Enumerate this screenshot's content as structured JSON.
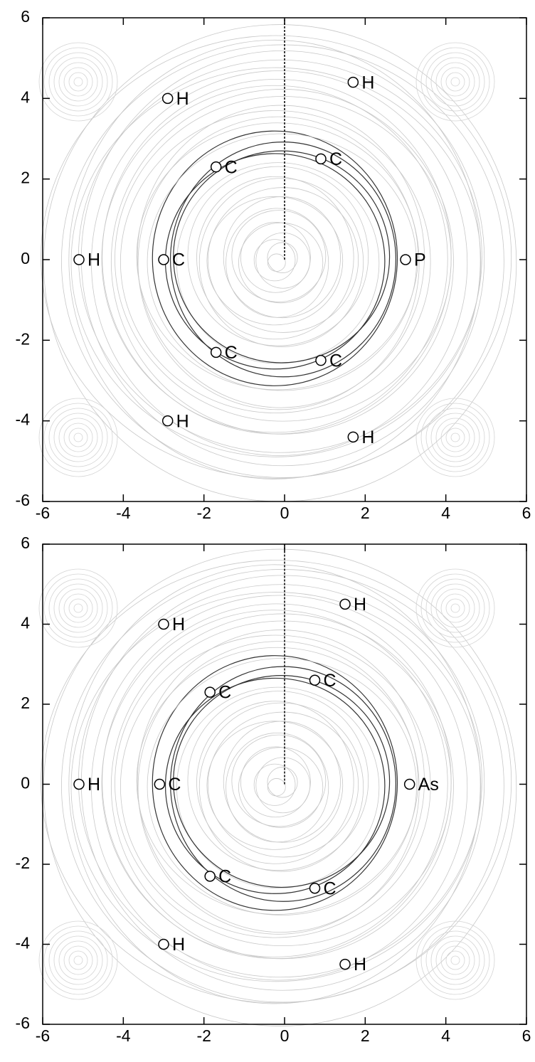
{
  "chart_data": [
    {
      "type": "scatter",
      "x": [
        -2.9,
        1.7,
        -1.7,
        0.9,
        -5.1,
        -3.0,
        3.0,
        -1.7,
        0.9,
        -2.9,
        1.7
      ],
      "y": [
        4.0,
        4.4,
        2.3,
        2.5,
        0,
        0,
        0,
        -2.3,
        -2.5,
        -4.0,
        -4.4
      ],
      "labels": [
        "H",
        "H",
        "C",
        "C",
        "H",
        "C",
        "P",
        "C",
        "C",
        "H",
        "H"
      ],
      "xlim": [
        -6,
        6
      ],
      "ylim": [
        -6,
        6
      ],
      "xticks": [
        -6,
        -4,
        -2,
        0,
        2,
        4,
        6
      ],
      "yticks": [
        -6,
        -4,
        -2,
        0,
        2,
        4,
        6
      ]
    },
    {
      "type": "scatter",
      "x": [
        -3.0,
        1.5,
        -1.85,
        0.75,
        -5.1,
        -3.1,
        3.1,
        -1.85,
        0.75,
        -3.0,
        1.5
      ],
      "y": [
        4.0,
        4.5,
        2.3,
        2.6,
        0,
        0,
        0,
        -2.3,
        -2.6,
        -4.0,
        -4.5
      ],
      "labels": [
        "H",
        "H",
        "C",
        "C",
        "H",
        "C",
        "As",
        "C",
        "C",
        "H",
        "H"
      ],
      "xlim": [
        -6,
        6
      ],
      "ylim": [
        -6,
        6
      ],
      "xticks": [
        -6,
        -4,
        -2,
        0,
        2,
        4,
        6
      ],
      "yticks": [
        -6,
        -4,
        -2,
        0,
        2,
        4,
        6
      ]
    }
  ]
}
